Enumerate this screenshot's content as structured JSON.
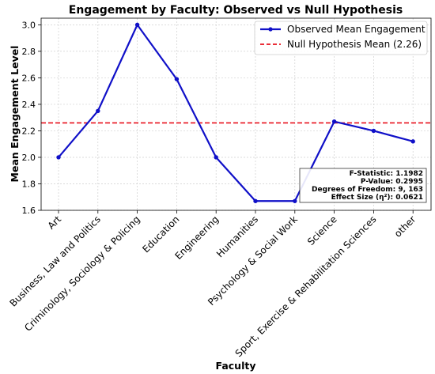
{
  "chart_data": {
    "type": "line",
    "title": "Engagement by Faculty: Observed vs Null Hypothesis",
    "xlabel": "Faculty",
    "ylabel": "Mean Engagement Level",
    "ylim": [
      1.6,
      3.05
    ],
    "yticks": [
      "1.6",
      "1.8",
      "2.0",
      "2.2",
      "2.4",
      "2.6",
      "2.8",
      "3.0"
    ],
    "grid": true,
    "legend_position": "top-right",
    "categories": [
      "Art",
      "Business, Law and Politics",
      "Criminology, Sociology & Policing",
      "Education",
      "Engineering",
      "Humanities",
      "Psychology & Social Work",
      "Science",
      "Sport, Exercise & Rehabilitation Sciences",
      "other"
    ],
    "series": [
      {
        "name": "Observed Mean Engagement",
        "color": "#1010c8",
        "values": [
          2.0,
          2.35,
          3.0,
          2.59,
          2.0,
          1.67,
          1.67,
          2.27,
          2.2,
          2.12
        ]
      }
    ],
    "reference_line": {
      "name": "Null Hypothesis Mean (2.26)",
      "value": 2.26,
      "color": "#e8101c"
    },
    "stats_box": {
      "lines": [
        "F-Statistic: 1.1982",
        "P-Value: 0.2995",
        "Degrees of Freedom: 9, 163",
        "Effect Size (η²): 0.0621"
      ]
    }
  }
}
